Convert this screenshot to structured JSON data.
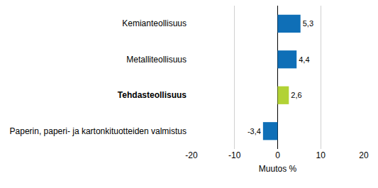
{
  "chart_data": {
    "type": "bar",
    "orientation": "horizontal",
    "categories": [
      "Kemianteollisuus",
      "Metalliteollisuus",
      "Tehdasteollisuus",
      "Paperin, paperi- ja kartonkituotteiden valmistus"
    ],
    "values": [
      5.3,
      4.4,
      2.6,
      -3.4
    ],
    "value_labels": [
      "5,3",
      "4,4",
      "2,6",
      "-3,4"
    ],
    "colors": [
      "#0f6fb7",
      "#0f6fb7",
      "#b2d235",
      "#0f6fb7"
    ],
    "xlabel": "Muutos %",
    "xlim": [
      -20,
      20
    ],
    "xticks": [
      -20,
      -10,
      0,
      10,
      20
    ],
    "grid": true,
    "data_labels": true
  }
}
